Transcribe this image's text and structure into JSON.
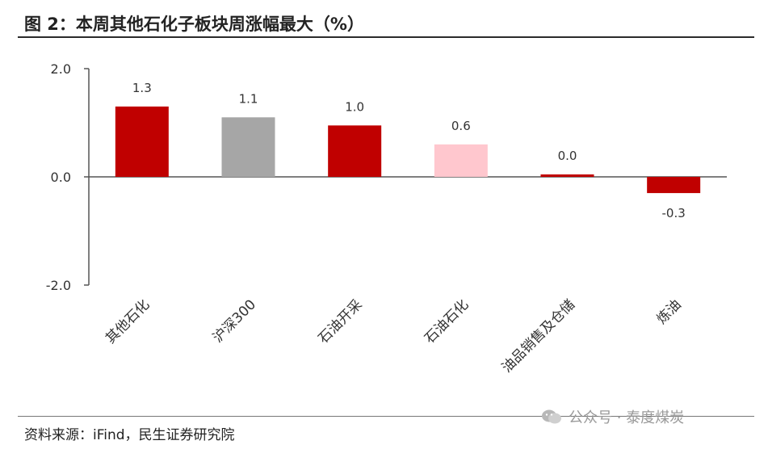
{
  "header": {
    "title": "图 2：本周其他石化子板块周涨幅最大（%）"
  },
  "footer": {
    "source": "资料来源：iFind，民生证券研究院",
    "watermark": "公众号 · 泰度煤炭"
  },
  "colors": {
    "red": "#c00000",
    "gray": "#a6a6a6",
    "pink": "#ffc7ce",
    "axis": "#555555"
  },
  "chart_data": {
    "type": "bar",
    "title": "",
    "xlabel": "",
    "ylabel": "",
    "ylim": [
      -2.0,
      2.0
    ],
    "yticks": [
      2.0,
      0.0,
      -2.0
    ],
    "ytick_labels": [
      "2.0",
      "0.0",
      "-2.0"
    ],
    "grid": false,
    "categories": [
      "其他石化",
      "沪深300",
      "石油开采",
      "石油石化",
      "油品销售及仓储",
      "炼油"
    ],
    "values": [
      1.3,
      1.1,
      0.95,
      0.6,
      0.03,
      -0.3
    ],
    "data_labels": [
      "1.3",
      "1.1",
      "1.0",
      "0.6",
      "0.0",
      "-0.3"
    ],
    "bar_colors": [
      "#c00000",
      "#a6a6a6",
      "#c00000",
      "#ffc7ce",
      "#c00000",
      "#c00000"
    ]
  }
}
